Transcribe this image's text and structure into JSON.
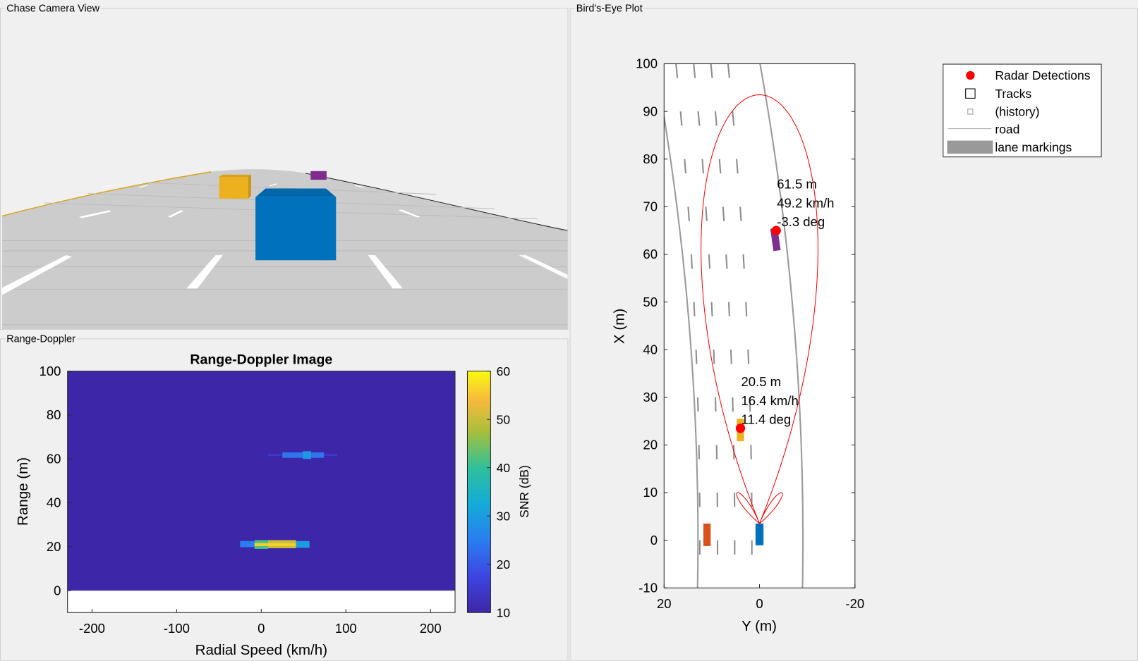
{
  "panels": {
    "chase": "Chase Camera View",
    "birds_eye": "Bird's-Eye Plot",
    "range_doppler": "Range-Doppler"
  },
  "colors": {
    "ego": "#0072bd",
    "car_yellow": "#edb120",
    "car_purple": "#7e2f8e",
    "car_orange": "#d95319",
    "detection": "#ff0000",
    "coverage": "#ff0000",
    "road": "#999999"
  },
  "chart_data": [
    {
      "type": "heatmap",
      "title": "Range-Doppler Image",
      "xlabel": "Radial Speed (km/h)",
      "ylabel": "Range (m)",
      "xlim": [
        -229,
        229
      ],
      "ylim": [
        -10,
        100
      ],
      "data_ylim": [
        0,
        100
      ],
      "xticks": [
        "-200",
        "-100",
        "0",
        "100",
        "200"
      ],
      "xtick_values": [
        -200,
        -100,
        0,
        100,
        200
      ],
      "yticks": [
        "0",
        "20",
        "40",
        "60",
        "80",
        "100"
      ],
      "ytick_values": [
        0,
        20,
        40,
        60,
        80,
        100
      ],
      "colorbar": {
        "label": "SNR (dB)",
        "lim": [
          10,
          60
        ],
        "ticks": [
          "10",
          "20",
          "30",
          "40",
          "50",
          "60"
        ],
        "tick_values": [
          10,
          20,
          30,
          40,
          50,
          60
        ]
      },
      "background_snr": 10,
      "cells": [
        {
          "speed": [
            8,
            90
          ],
          "range": [
            61.4,
            62.2
          ],
          "snr": 15
        },
        {
          "speed": [
            25,
            49
          ],
          "range": [
            60.5,
            63
          ],
          "snr": 24
        },
        {
          "speed": [
            49,
            59
          ],
          "range": [
            60,
            63.5
          ],
          "snr": 29
        },
        {
          "speed": [
            59,
            74
          ],
          "range": [
            60.5,
            63
          ],
          "snr": 24
        },
        {
          "speed": [
            -25,
            -8
          ],
          "range": [
            19.8,
            22.6
          ],
          "snr": 25
        },
        {
          "speed": [
            -8,
            8
          ],
          "range": [
            19,
            23
          ],
          "snr": 42
        },
        {
          "speed": [
            8,
            41
          ],
          "range": [
            19.3,
            23
          ],
          "snr": 50
        },
        {
          "speed": [
            41,
            57
          ],
          "range": [
            19.5,
            22.6
          ],
          "snr": 30
        },
        {
          "speed": [
            -8,
            41
          ],
          "range": [
            20.3,
            21.6
          ],
          "snr": 56
        }
      ]
    },
    {
      "type": "scatter",
      "title": "Bird's-Eye Plot",
      "xlabel": "Y (m)",
      "ylabel": "X (m)",
      "xlim": [
        20,
        -20
      ],
      "ylim": [
        -10,
        100
      ],
      "xticks": [
        "20",
        "0",
        "-20"
      ],
      "xtick_values": [
        20,
        0,
        -20
      ],
      "yticks": [
        "-10",
        "0",
        "10",
        "20",
        "30",
        "40",
        "50",
        "60",
        "70",
        "80",
        "90",
        "100"
      ],
      "ytick_values": [
        -10,
        0,
        10,
        20,
        30,
        40,
        50,
        60,
        70,
        80,
        90,
        100
      ],
      "legend": {
        "placement": "outside-right",
        "entries": [
          "Radar Detections",
          "Tracks",
          "(history)",
          "road",
          "lane markings"
        ]
      },
      "detections": [
        {
          "X": 65,
          "Y": -3.5,
          "labels": [
            "61.5 m",
            "49.2 km/h",
            "-3.3 deg"
          ]
        },
        {
          "X": 23.5,
          "Y": 4,
          "labels": [
            "20.5 m",
            "16.4 km/h",
            "11.4 deg"
          ]
        }
      ],
      "vehicles": [
        {
          "name": "ego",
          "X": 0,
          "Y": 0,
          "color": "#0072bd"
        },
        {
          "name": "yellow",
          "X": 22,
          "Y": 4,
          "color": "#edb120"
        },
        {
          "name": "purple",
          "X": 62,
          "Y": -3.5,
          "color": "#7e2f8e"
        },
        {
          "name": "orange",
          "X": 0,
          "Y": 11,
          "color": "#d95319"
        }
      ],
      "road_boundaries": [
        {
          "offset": 12.9,
          "curvature": 0.0009
        },
        {
          "offset": -9.1,
          "curvature": 0.0009
        }
      ],
      "lane_marking_offsets": [
        12.5,
        8.8,
        5.2,
        1.6
      ],
      "coverage": {
        "max_range": 90,
        "origin_X": 3.5
      }
    }
  ]
}
